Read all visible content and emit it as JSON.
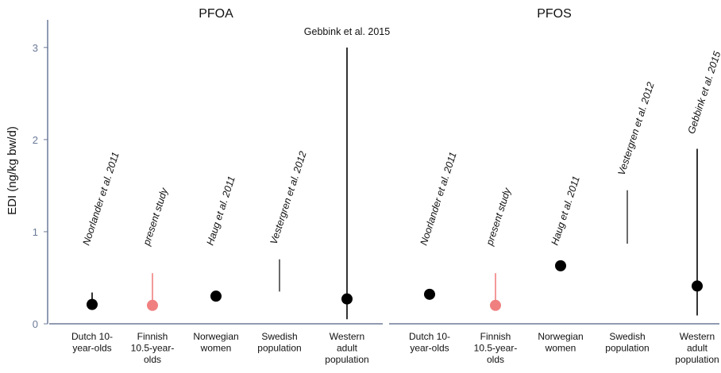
{
  "chart_data": [
    {
      "type": "dot-range",
      "title": "PFOA",
      "ylabel": "EDI (ng/kg bw/d)",
      "categories": [
        "Dutch 10-\nyear-olds",
        "Finnish\n10.5-year-\nolds",
        "Norwegian\nwomen",
        "Swedish\npopulation",
        "Western\nadult\npopulation"
      ],
      "annotations": [
        "Noorlander et al. 2011",
        "present study",
        "Haug et al. 2011",
        "Vestergren et al. 2012",
        "Gebbink et al. 2015"
      ],
      "values": [
        0.21,
        0.2,
        0.3,
        null,
        0.27
      ],
      "lows": [
        0.21,
        0.2,
        null,
        0.35,
        0.05
      ],
      "highs": [
        0.34,
        0.55,
        null,
        0.7,
        3.0
      ],
      "colors": [
        "#000000",
        "#f08080",
        "#000000",
        "#444444",
        "#000000"
      ],
      "ylim": [
        0,
        3.3
      ],
      "yticks": [
        0,
        1,
        2,
        3
      ]
    },
    {
      "type": "dot-range",
      "title": "PFOS",
      "categories": [
        "Dutch 10-\nyear-olds",
        "Finnish\n10.5-year-\nolds",
        "Norwegian\nwomen",
        "Swedish\npopulation",
        "Western\nadult\npopulation"
      ],
      "annotations": [
        "Noorlander et al. 2011",
        "present study",
        "Haug et al. 2011",
        "Vestergren et al. 2012",
        "Gebbink et al. 2015"
      ],
      "values": [
        0.32,
        0.2,
        0.63,
        null,
        0.41
      ],
      "lows": [
        null,
        0.2,
        null,
        0.87,
        0.09
      ],
      "highs": [
        null,
        0.55,
        null,
        1.45,
        1.9
      ],
      "colors": [
        "#000000",
        "#f08080",
        "#000000",
        "#444444",
        "#000000"
      ]
    }
  ]
}
